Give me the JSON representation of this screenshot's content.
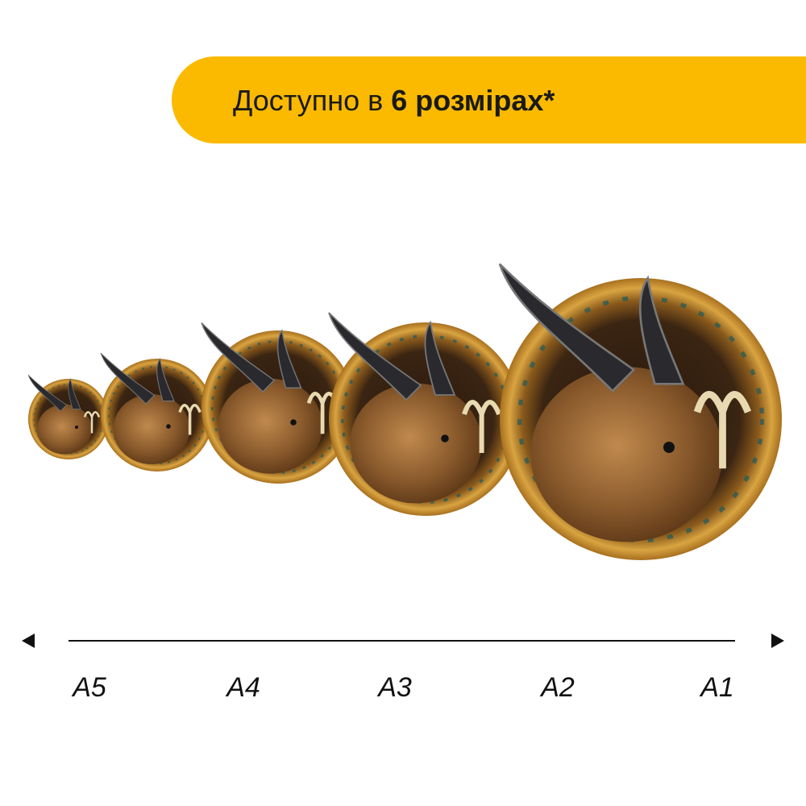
{
  "banner": {
    "text_regular": "Доступно в ",
    "text_bold": "6 розмірах*",
    "color": "#FBBA00"
  },
  "product": {
    "image": "capricorn-zodiac-wooden-puzzle",
    "count_shown": 5
  },
  "scale": {
    "labels": [
      "A5",
      "A4",
      "A3",
      "A2",
      "A1"
    ]
  }
}
